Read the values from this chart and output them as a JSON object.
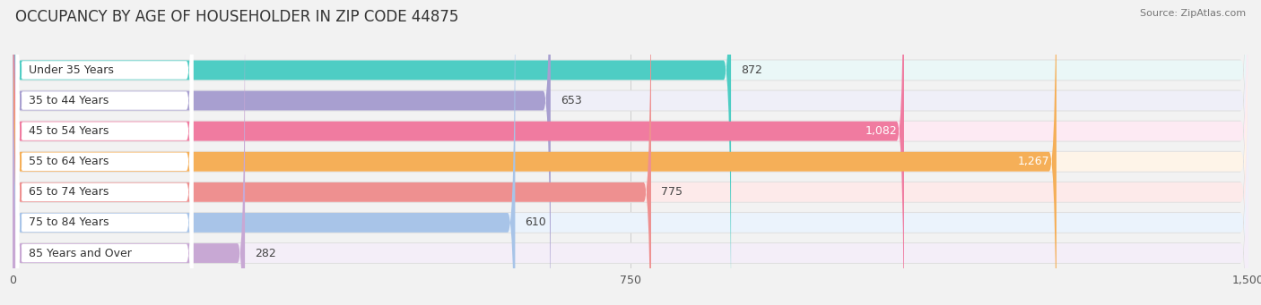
{
  "title": "OCCUPANCY BY AGE OF HOUSEHOLDER IN ZIP CODE 44875",
  "source": "Source: ZipAtlas.com",
  "categories": [
    "Under 35 Years",
    "35 to 44 Years",
    "45 to 54 Years",
    "55 to 64 Years",
    "65 to 74 Years",
    "75 to 84 Years",
    "85 Years and Over"
  ],
  "values": [
    872,
    653,
    1082,
    1267,
    775,
    610,
    282
  ],
  "bar_colors": [
    "#4ECDC4",
    "#A89FD0",
    "#F07BA0",
    "#F5AF58",
    "#EE9090",
    "#A8C4E8",
    "#C8A8D4"
  ],
  "bar_bg_colors": [
    "#EAF7F7",
    "#EFEFF8",
    "#FDEAF3",
    "#FEF4E8",
    "#FDEAEA",
    "#EBF3FC",
    "#F4EEF8"
  ],
  "value_colors_white": [
    false,
    false,
    true,
    true,
    false,
    false,
    false
  ],
  "xlim": [
    0,
    1500
  ],
  "xticks": [
    0,
    750,
    1500
  ],
  "background_color": "#f2f2f2",
  "bar_row_bg": "#e8e8e8",
  "title_fontsize": 12,
  "label_fontsize": 9,
  "value_fontsize": 9
}
